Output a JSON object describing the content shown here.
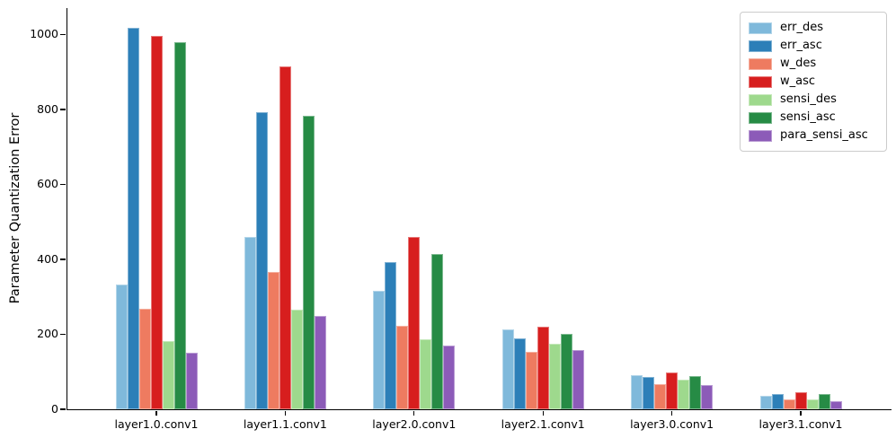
{
  "chart_data": {
    "type": "bar",
    "title": "",
    "xlabel": "",
    "ylabel": "Parameter Quantization Error",
    "categories": [
      "layer1.0.conv1",
      "layer1.1.conv1",
      "layer2.0.conv1",
      "layer2.1.conv1",
      "layer3.0.conv1",
      "layer3.1.conv1"
    ],
    "series": [
      {
        "name": "err_des",
        "color": "#7fb9db",
        "values": [
          333,
          460,
          315,
          212,
          90,
          37
        ]
      },
      {
        "name": "err_asc",
        "color": "#2c7fb8",
        "values": [
          1018,
          793,
          392,
          189,
          86,
          40
        ]
      },
      {
        "name": "w_des",
        "color": "#ee7b60",
        "values": [
          268,
          366,
          223,
          154,
          68,
          27
        ]
      },
      {
        "name": "w_asc",
        "color": "#d71e1e",
        "values": [
          995,
          915,
          460,
          221,
          97,
          45
        ]
      },
      {
        "name": "sensi_des",
        "color": "#9ed98d",
        "values": [
          181,
          266,
          187,
          174,
          78,
          27
        ]
      },
      {
        "name": "sensi_asc",
        "color": "#268b45",
        "values": [
          978,
          783,
          413,
          200,
          88,
          41
        ]
      },
      {
        "name": "para_sensi_asc",
        "color": "#8c5bb8",
        "values": [
          150,
          248,
          170,
          158,
          65,
          22
        ]
      }
    ],
    "yticks": [
      0,
      200,
      400,
      600,
      800,
      1000
    ],
    "ylim": [
      0,
      1070
    ],
    "grid": false,
    "legend_position": "upper right"
  }
}
